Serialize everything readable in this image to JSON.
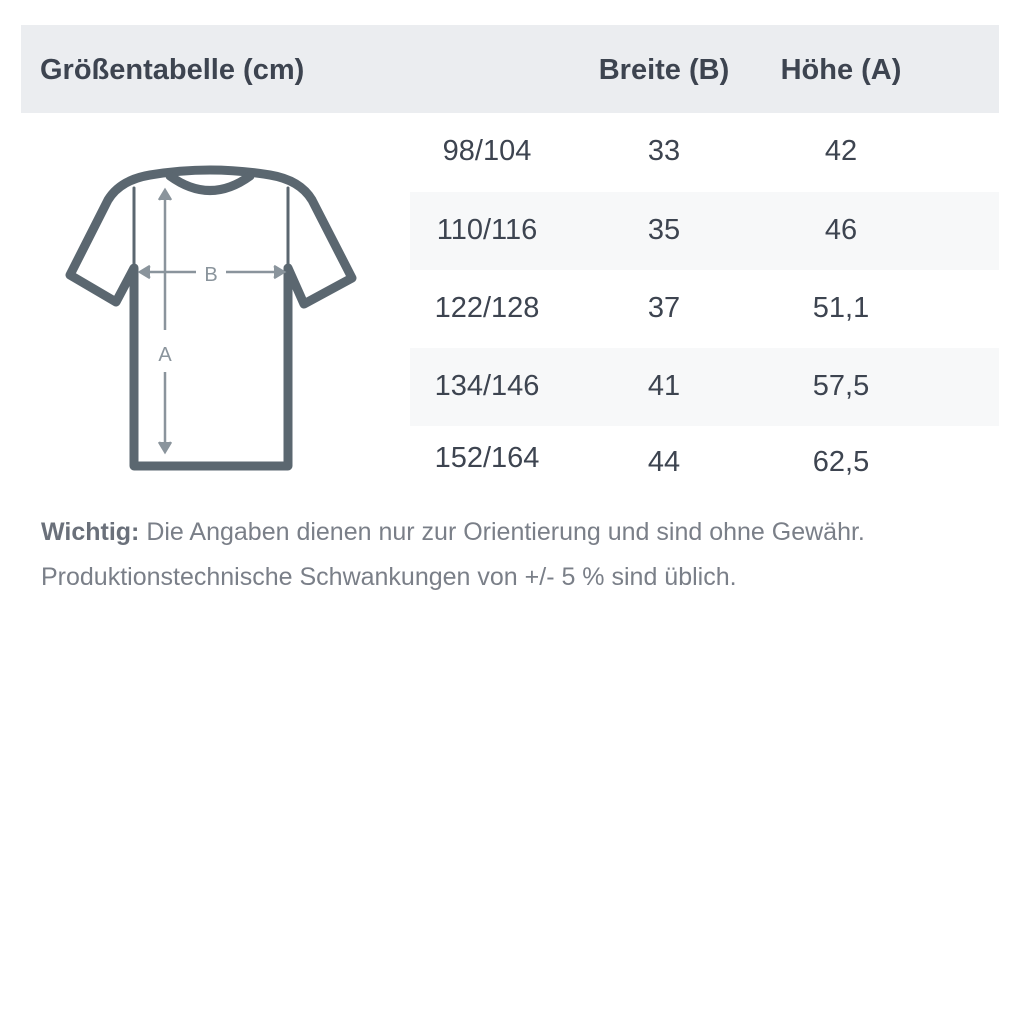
{
  "header": {
    "title": "Größentabelle (cm)",
    "col_width": "Breite (B)",
    "col_height": "Höhe (A)"
  },
  "rows": [
    {
      "size": "98/104",
      "width": "33",
      "height": "42"
    },
    {
      "size": "110/116",
      "width": "35",
      "height": "46"
    },
    {
      "size": "122/128",
      "width": "37",
      "height": "51,1"
    },
    {
      "size": "134/146",
      "width": "41",
      "height": "57,5"
    },
    {
      "size": "152/164",
      "width": "44",
      "height": "62,5"
    }
  ],
  "diagram": {
    "label_width": "B",
    "label_height": "A"
  },
  "note": {
    "label": "Wichtig:",
    "line1": " Die Angaben dienen nur zur Orientierung und sind ohne Gewähr.",
    "line2": "Produktionstechnische Schwankungen von +/- 5 % sind üblich."
  },
  "colors": {
    "header_bg": "#ebedf0",
    "stripe": "#f7f8f9",
    "text": "#3d4450",
    "shirt": "#5b6770",
    "arrow": "#8a949c"
  }
}
